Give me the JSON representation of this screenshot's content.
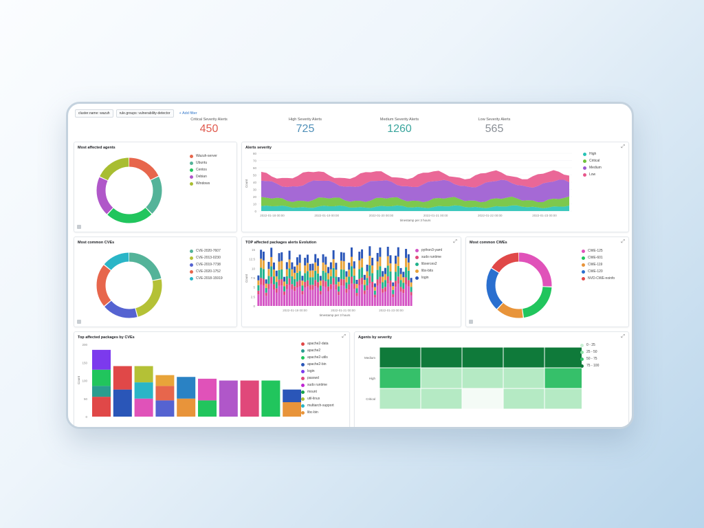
{
  "filters": [
    {
      "label": "cluster.name: wazuh"
    },
    {
      "label": "rule.groups: vulnerability-detector"
    }
  ],
  "add_filter_label": "+ Add filter",
  "metrics": [
    {
      "label": "Critical Severity Alerts",
      "value": "450",
      "color": "#e05a4e"
    },
    {
      "label": "High Severity Alerts",
      "value": "725",
      "color": "#4f8fb8"
    },
    {
      "label": "Medium Severity Alerts",
      "value": "1260",
      "color": "#3aa59d"
    },
    {
      "label": "Low Severity Alerts",
      "value": "565",
      "color": "#8a8f96"
    }
  ],
  "panels": {
    "affected_agents": {
      "title": "Most affected agents",
      "legend": [
        {
          "label": "Wazuh-server",
          "color": "#e7664c"
        },
        {
          "label": "Ubuntu",
          "color": "#54b399"
        },
        {
          "label": "Centos",
          "color": "#21c55d"
        },
        {
          "label": "Debian",
          "color": "#b057c9"
        },
        {
          "label": "Windows",
          "color": "#a8bd31"
        }
      ],
      "slices": [
        0.18,
        0.2,
        0.24,
        0.2,
        0.18
      ]
    },
    "alerts_severity": {
      "title": "Alerts severity",
      "ylabel": "Count",
      "xlabel": "timestamp per 3 hours",
      "legend": [
        {
          "label": "High",
          "color": "#27c3b6"
        },
        {
          "label": "Critical",
          "color": "#6fc23a"
        },
        {
          "label": "Medium",
          "color": "#9b59d0"
        },
        {
          "label": "Low",
          "color": "#e8578c"
        }
      ],
      "yticks": [
        "80",
        "70",
        "60",
        "50",
        "40",
        "30",
        "20",
        "10",
        "0"
      ],
      "xticks": [
        "2022-01-18 00:00",
        "2022-01-19 00:00",
        "2022-01-20 00:00",
        "2022-01-21 00:00",
        "2022-01-22 00:00",
        "2022-01-23 00:00"
      ]
    },
    "common_cves": {
      "title": "Most common CVEs",
      "legend": [
        {
          "label": "CVE-2020-7607",
          "color": "#54b399"
        },
        {
          "label": "CVE-2013-0230",
          "color": "#b4c136"
        },
        {
          "label": "CVE-2019-7738",
          "color": "#5563d1"
        },
        {
          "label": "CVE-2020-1752",
          "color": "#e7664c"
        },
        {
          "label": "CVE-2018-15919",
          "color": "#2ab5c7"
        }
      ],
      "slices": [
        0.22,
        0.24,
        0.18,
        0.22,
        0.14
      ]
    },
    "top_packages": {
      "title": "TOP affected packages alerts Evolution",
      "ylabel": "Count",
      "xlabel": "timestamp per 3 hours",
      "legend": [
        {
          "label": "python3-yaml",
          "color": "#d454c4"
        },
        {
          "label": "sudo runtime",
          "color": "#e0487a"
        },
        {
          "label": "libxerces2",
          "color": "#21b28c"
        },
        {
          "label": "libx-bits",
          "color": "#e8a43a"
        },
        {
          "label": "login",
          "color": "#2a56b8"
        }
      ],
      "yticks": [
        "15",
        "12.5",
        "10",
        "7.5",
        "5",
        "2.5",
        "0"
      ],
      "xticks": [
        "2022-01-19 00:00",
        "2022-01-21 00:00",
        "2022-01-23 00:00"
      ]
    },
    "common_cwes": {
      "title": "Most common CWEs",
      "legend": [
        {
          "label": "CWE-125",
          "color": "#e052b9"
        },
        {
          "label": "CWE-601",
          "color": "#21c55d"
        },
        {
          "label": "CWE-119",
          "color": "#e8943a"
        },
        {
          "label": "CWE-120",
          "color": "#2a6fcf"
        },
        {
          "label": "NVD-CWE-noinfo",
          "color": "#e04848"
        }
      ],
      "slices": [
        0.26,
        0.22,
        0.14,
        0.22,
        0.16
      ]
    },
    "packages_by_cves": {
      "title": "Top affected packages by CVEs",
      "ylabel": "Count",
      "legend": [
        {
          "label": "apache2-data",
          "color": "#e04848"
        },
        {
          "label": "apache2",
          "color": "#2a9d8f"
        },
        {
          "label": "apache2-utils",
          "color": "#21c55d"
        },
        {
          "label": "apache2-bin",
          "color": "#2a56b8"
        },
        {
          "label": "login",
          "color": "#7c3aed"
        },
        {
          "label": "passwd",
          "color": "#e0487a"
        },
        {
          "label": "sudo runtime",
          "color": "#c026d3"
        },
        {
          "label": "mount",
          "color": "#16a34a"
        },
        {
          "label": "util-linux",
          "color": "#a8bd31"
        },
        {
          "label": "multiarch-support",
          "color": "#2ab5c7"
        },
        {
          "label": "libc-bin",
          "color": "#e8943a"
        }
      ],
      "yticks": [
        "200",
        "150",
        "100",
        "50",
        "0"
      ],
      "bars": [
        {
          "segments": [
            {
              "v": 55,
              "c": "#e04848"
            },
            {
              "v": 30,
              "c": "#2a9d8f"
            },
            {
              "v": 45,
              "c": "#21c55d"
            },
            {
              "v": 55,
              "c": "#7c3aed"
            }
          ]
        },
        {
          "segments": [
            {
              "v": 75,
              "c": "#2a56b8"
            },
            {
              "v": 65,
              "c": "#e04848"
            }
          ]
        },
        {
          "segments": [
            {
              "v": 50,
              "c": "#e052b9"
            },
            {
              "v": 45,
              "c": "#2ab5c7"
            },
            {
              "v": 45,
              "c": "#b4c136"
            }
          ]
        },
        {
          "segments": [
            {
              "v": 45,
              "c": "#5563d1"
            },
            {
              "v": 40,
              "c": "#e7664c"
            },
            {
              "v": 30,
              "c": "#e8a43a"
            }
          ]
        },
        {
          "segments": [
            {
              "v": 50,
              "c": "#e8943a"
            },
            {
              "v": 60,
              "c": "#2a82c4"
            }
          ]
        },
        {
          "segments": [
            {
              "v": 45,
              "c": "#21c55d"
            },
            {
              "v": 60,
              "c": "#e052b9"
            }
          ]
        },
        {
          "segments": [
            {
              "v": 100,
              "c": "#b057c9"
            }
          ]
        },
        {
          "segments": [
            {
              "v": 100,
              "c": "#e0487a"
            }
          ]
        },
        {
          "segments": [
            {
              "v": 100,
              "c": "#21c55d"
            }
          ]
        },
        {
          "segments": [
            {
              "v": 40,
              "c": "#e8943a"
            },
            {
              "v": 35,
              "c": "#2a56b8"
            }
          ]
        }
      ]
    },
    "agents_by_severity": {
      "title": "Agents by severity",
      "rows": [
        "Medium",
        "High",
        "Critical"
      ],
      "legend": [
        {
          "label": "0 - 25",
          "color": "#c9f0d4"
        },
        {
          "label": "25 - 50",
          "color": "#8fdfa7"
        },
        {
          "label": "50 - 75",
          "color": "#36c06a"
        },
        {
          "label": "75 - 100",
          "color": "#0f7a3a"
        }
      ]
    }
  }
}
